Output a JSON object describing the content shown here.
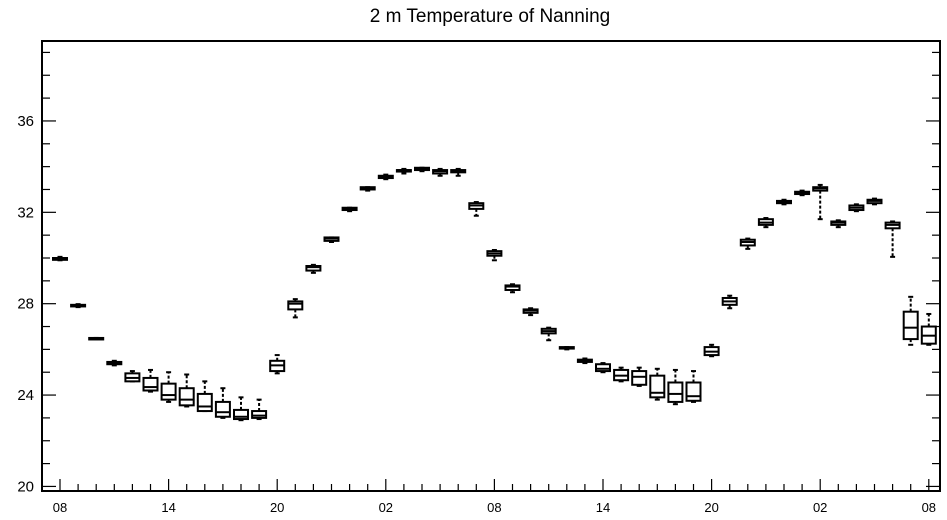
{
  "chart_data": {
    "type": "box",
    "title": "2 m Temperature of Nanning",
    "xlabel": "",
    "ylabel": "",
    "ylim": [
      19.8,
      39.5
    ],
    "yticks": [
      20,
      24,
      28,
      32,
      36
    ],
    "xtick_labels": [
      "08",
      "14",
      "20",
      "02",
      "08",
      "14",
      "20",
      "02",
      "08"
    ],
    "xtick_hours": [
      0,
      6,
      12,
      18,
      24,
      30,
      36,
      42,
      48
    ],
    "grid": false,
    "legend": "none",
    "boxes": [
      {
        "hour": 0,
        "min": 29.9,
        "q1": 29.92,
        "median": 29.95,
        "q3": 30.0,
        "max": 30.05
      },
      {
        "hour": 1,
        "min": 27.85,
        "q1": 27.88,
        "median": 27.9,
        "q3": 27.95,
        "max": 27.98
      },
      {
        "hour": 2,
        "min": 26.45,
        "q1": 26.45,
        "median": 26.45,
        "q3": 26.5,
        "max": 26.5
      },
      {
        "hour": 3,
        "min": 25.3,
        "q1": 25.35,
        "median": 25.4,
        "q3": 25.45,
        "max": 25.5
      },
      {
        "hour": 4,
        "min": 24.6,
        "q1": 24.6,
        "median": 24.75,
        "q3": 24.95,
        "max": 25.05
      },
      {
        "hour": 5,
        "min": 24.15,
        "q1": 24.2,
        "median": 24.35,
        "q3": 24.75,
        "max": 25.1
      },
      {
        "hour": 6,
        "min": 23.7,
        "q1": 23.8,
        "median": 24.0,
        "q3": 24.5,
        "max": 25.0
      },
      {
        "hour": 7,
        "min": 23.5,
        "q1": 23.55,
        "median": 23.8,
        "q3": 24.3,
        "max": 24.9
      },
      {
        "hour": 8,
        "min": 23.3,
        "q1": 23.3,
        "median": 23.5,
        "q3": 24.05,
        "max": 24.6
      },
      {
        "hour": 9,
        "min": 23.0,
        "q1": 23.05,
        "median": 23.25,
        "q3": 23.7,
        "max": 24.3
      },
      {
        "hour": 10,
        "min": 22.9,
        "q1": 22.95,
        "median": 23.05,
        "q3": 23.35,
        "max": 23.9
      },
      {
        "hour": 11,
        "min": 22.95,
        "q1": 23.0,
        "median": 23.1,
        "q3": 23.3,
        "max": 23.8
      },
      {
        "hour": 12,
        "min": 24.95,
        "q1": 25.05,
        "median": 25.3,
        "q3": 25.5,
        "max": 25.75
      },
      {
        "hour": 13,
        "min": 27.4,
        "q1": 27.75,
        "median": 28.0,
        "q3": 28.1,
        "max": 28.2
      },
      {
        "hour": 14,
        "min": 29.35,
        "q1": 29.45,
        "median": 29.6,
        "q3": 29.65,
        "max": 29.7
      },
      {
        "hour": 15,
        "min": 30.7,
        "q1": 30.75,
        "median": 30.85,
        "q3": 30.9,
        "max": 30.9
      },
      {
        "hour": 16,
        "min": 32.05,
        "q1": 32.1,
        "median": 32.15,
        "q3": 32.2,
        "max": 32.2
      },
      {
        "hour": 17,
        "min": 32.95,
        "q1": 33.0,
        "median": 33.05,
        "q3": 33.1,
        "max": 33.1
      },
      {
        "hour": 18,
        "min": 33.45,
        "q1": 33.5,
        "median": 33.55,
        "q3": 33.6,
        "max": 33.65
      },
      {
        "hour": 19,
        "min": 33.7,
        "q1": 33.8,
        "median": 33.85,
        "q3": 33.85,
        "max": 33.9
      },
      {
        "hour": 20,
        "min": 33.8,
        "q1": 33.85,
        "median": 33.9,
        "q3": 33.95,
        "max": 33.95
      },
      {
        "hour": 21,
        "min": 33.6,
        "q1": 33.7,
        "median": 33.8,
        "q3": 33.85,
        "max": 33.9
      },
      {
        "hour": 22,
        "min": 33.6,
        "q1": 33.75,
        "median": 33.8,
        "q3": 33.85,
        "max": 33.9
      },
      {
        "hour": 23,
        "min": 31.85,
        "q1": 32.15,
        "median": 32.3,
        "q3": 32.4,
        "max": 32.45
      },
      {
        "hour": 24,
        "min": 29.9,
        "q1": 30.1,
        "median": 30.2,
        "q3": 30.3,
        "max": 30.35
      },
      {
        "hour": 25,
        "min": 28.5,
        "q1": 28.6,
        "median": 28.75,
        "q3": 28.8,
        "max": 28.85
      },
      {
        "hour": 26,
        "min": 27.5,
        "q1": 27.6,
        "median": 27.7,
        "q3": 27.75,
        "max": 27.8
      },
      {
        "hour": 27,
        "min": 26.4,
        "q1": 26.7,
        "median": 26.8,
        "q3": 26.9,
        "max": 26.95
      },
      {
        "hour": 28,
        "min": 26.0,
        "q1": 26.05,
        "median": 26.05,
        "q3": 26.1,
        "max": 26.1
      },
      {
        "hour": 29,
        "min": 25.4,
        "q1": 25.45,
        "median": 25.5,
        "q3": 25.55,
        "max": 25.6
      },
      {
        "hour": 30,
        "min": 25.0,
        "q1": 25.05,
        "median": 25.15,
        "q3": 25.35,
        "max": 25.4
      },
      {
        "hour": 31,
        "min": 24.6,
        "q1": 24.65,
        "median": 24.85,
        "q3": 25.1,
        "max": 25.2
      },
      {
        "hour": 32,
        "min": 24.4,
        "q1": 24.45,
        "median": 24.8,
        "q3": 25.05,
        "max": 25.2
      },
      {
        "hour": 33,
        "min": 23.8,
        "q1": 23.9,
        "median": 24.1,
        "q3": 24.85,
        "max": 25.15
      },
      {
        "hour": 34,
        "min": 23.6,
        "q1": 23.7,
        "median": 24.05,
        "q3": 24.55,
        "max": 25.1
      },
      {
        "hour": 35,
        "min": 23.7,
        "q1": 23.75,
        "median": 23.95,
        "q3": 24.55,
        "max": 25.05
      },
      {
        "hour": 36,
        "min": 25.7,
        "q1": 25.75,
        "median": 25.9,
        "q3": 26.1,
        "max": 26.2
      },
      {
        "hour": 37,
        "min": 27.8,
        "q1": 27.95,
        "median": 28.1,
        "q3": 28.25,
        "max": 28.35
      },
      {
        "hour": 38,
        "min": 30.4,
        "q1": 30.55,
        "median": 30.7,
        "q3": 30.8,
        "max": 30.85
      },
      {
        "hour": 39,
        "min": 31.35,
        "q1": 31.45,
        "median": 31.55,
        "q3": 31.7,
        "max": 31.75
      },
      {
        "hour": 40,
        "min": 32.35,
        "q1": 32.4,
        "median": 32.45,
        "q3": 32.5,
        "max": 32.55
      },
      {
        "hour": 41,
        "min": 32.75,
        "q1": 32.8,
        "median": 32.85,
        "q3": 32.9,
        "max": 32.95
      },
      {
        "hour": 42,
        "min": 31.7,
        "q1": 32.95,
        "median": 33.05,
        "q3": 33.1,
        "max": 33.2
      },
      {
        "hour": 43,
        "min": 31.35,
        "q1": 31.45,
        "median": 31.55,
        "q3": 31.6,
        "max": 31.65
      },
      {
        "hour": 44,
        "min": 32.05,
        "q1": 32.1,
        "median": 32.2,
        "q3": 32.3,
        "max": 32.35
      },
      {
        "hour": 45,
        "min": 32.35,
        "q1": 32.4,
        "median": 32.5,
        "q3": 32.55,
        "max": 32.6
      },
      {
        "hour": 46,
        "min": 30.05,
        "q1": 31.3,
        "median": 31.45,
        "q3": 31.55,
        "max": 31.6
      },
      {
        "hour": 47,
        "min": 26.2,
        "q1": 26.45,
        "median": 26.95,
        "q3": 27.65,
        "max": 28.3
      },
      {
        "hour": 48,
        "min": 26.2,
        "q1": 26.25,
        "median": 26.6,
        "q3": 27.0,
        "max": 27.55
      }
    ]
  }
}
